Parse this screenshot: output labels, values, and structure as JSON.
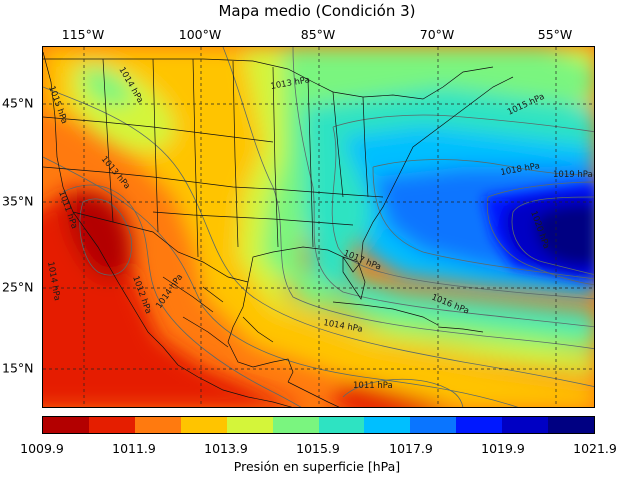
{
  "title": "Mapa medio (Condición 3)",
  "longitude_labels": [
    "115°W",
    "100°W",
    "85°W",
    "70°W",
    "55°W"
  ],
  "latitude_labels": [
    "45°N",
    "35°N",
    "25°N",
    "15°N"
  ],
  "colorbar": {
    "label": "Presión en superficie [hPa]",
    "ticks": [
      "1009.9",
      "1011.9",
      "1013.9",
      "1015.9",
      "1017.9",
      "1019.9",
      "1021.9"
    ],
    "range": [
      1009.9,
      1021.9
    ],
    "colors": [
      "#b30000",
      "#e51e00",
      "#ff7a0f",
      "#ffc400",
      "#d4f53a",
      "#7af57f",
      "#2ee3c2",
      "#00bfff",
      "#0a75ff",
      "#0018ff",
      "#0000c4",
      "#000082"
    ]
  },
  "contour_labels": [
    {
      "text": "1015 hPa"
    },
    {
      "text": "1014 hPa"
    },
    {
      "text": "1013 hPa"
    },
    {
      "text": "1013 hPa"
    },
    {
      "text": "1011 hPa"
    },
    {
      "text": "1014 hPa"
    },
    {
      "text": "1012 hPa"
    },
    {
      "text": "1014 hPa"
    },
    {
      "text": "1017 hPa"
    },
    {
      "text": "1016 hPa"
    },
    {
      "text": "1014 hPa"
    },
    {
      "text": "1015 hPa"
    },
    {
      "text": "1018 hPa"
    },
    {
      "text": "1019 hPa"
    },
    {
      "text": "1020 hPa"
    },
    {
      "text": "1011 hPa"
    }
  ]
}
